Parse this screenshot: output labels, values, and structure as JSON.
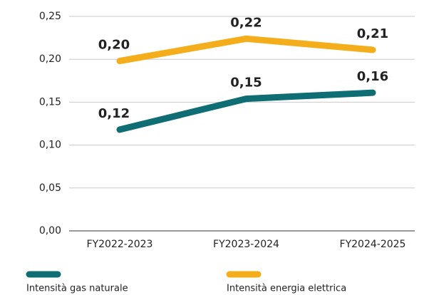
{
  "chart_data": {
    "type": "line",
    "categories": [
      "FY2022-2023",
      "FY2023-2024",
      "FY2024-2025"
    ],
    "series": [
      {
        "name": "Intensità gas naturale",
        "color": "#0e6e73",
        "values": [
          0.118,
          0.154,
          0.161
        ],
        "value_labels": [
          "0,12",
          "0,15",
          "0,16"
        ]
      },
      {
        "name": "Intensità energia elettrica",
        "color": "#f5ae1b",
        "values": [
          0.198,
          0.224,
          0.211
        ],
        "value_labels": [
          "0,20",
          "0,22",
          "0,21"
        ]
      }
    ],
    "ylim": [
      0,
      0.25
    ],
    "yticks": [
      {
        "value": 0,
        "label": "0,00"
      },
      {
        "value": 0.05,
        "label": "0,05"
      },
      {
        "value": 0.1,
        "label": "0,10"
      },
      {
        "value": 0.15,
        "label": "0,15"
      },
      {
        "value": 0.2,
        "label": "0,20"
      },
      {
        "value": 0.25,
        "label": "0,25"
      }
    ],
    "grid": true
  }
}
